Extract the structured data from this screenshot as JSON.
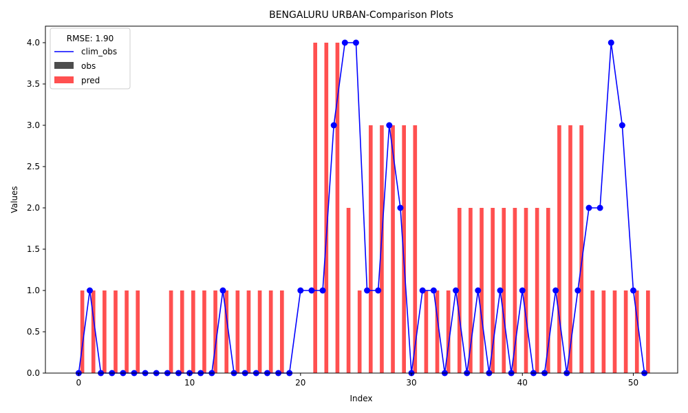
{
  "chart_data": {
    "type": "bar+line",
    "title": "BENGALURU URBAN-Comparison Plots",
    "xlabel": "Index",
    "ylabel": "Values",
    "xlim": [
      -3,
      54
    ],
    "ylim": [
      0,
      4.2
    ],
    "xticks": [
      0,
      10,
      20,
      30,
      40,
      50
    ],
    "yticks": [
      0.0,
      0.5,
      1.0,
      1.5,
      2.0,
      2.5,
      3.0,
      3.5,
      4.0
    ],
    "legend": {
      "title": "RMSE: 1.90",
      "placement": "top-left",
      "entries": [
        {
          "label": "clim_obs",
          "kind": "line",
          "color": "#0000ff"
        },
        {
          "label": "obs",
          "kind": "bar",
          "color": "#4d4d4d"
        },
        {
          "label": "pred",
          "kind": "bar",
          "color": "#ff5050"
        }
      ]
    },
    "x": [
      0,
      1,
      2,
      3,
      4,
      5,
      6,
      7,
      8,
      9,
      10,
      11,
      12,
      13,
      14,
      15,
      16,
      17,
      18,
      19,
      20,
      21,
      22,
      23,
      24,
      25,
      26,
      27,
      28,
      29,
      30,
      31,
      32,
      33,
      34,
      35,
      36,
      37,
      38,
      39,
      40,
      41,
      42,
      43,
      44,
      45,
      46,
      47,
      48,
      49,
      50,
      51
    ],
    "series": [
      {
        "name": "clim_obs",
        "kind": "line",
        "color": "#0000ff",
        "values": [
          0,
          1,
          0,
          0,
          0,
          0,
          0,
          0,
          0,
          0,
          0,
          0,
          0,
          1,
          0,
          0,
          0,
          0,
          0,
          0,
          1,
          1,
          1,
          3,
          4,
          4,
          1,
          1,
          3,
          2,
          0,
          1,
          1,
          0,
          1,
          0,
          1,
          0,
          1,
          0,
          1,
          0,
          0,
          1,
          0,
          1,
          2,
          2,
          4,
          3,
          1,
          0
        ]
      },
      {
        "name": "obs",
        "kind": "bar",
        "color": "#4d4d4d",
        "values": [
          0,
          0,
          0,
          0,
          0,
          0,
          0,
          0,
          0,
          0,
          0,
          0,
          0,
          0,
          0,
          0,
          0,
          0,
          0,
          0,
          0,
          0,
          0,
          0,
          0,
          0,
          0,
          0,
          0,
          0,
          0,
          0,
          0,
          0,
          0,
          0,
          0,
          0,
          0,
          0,
          0,
          0,
          0,
          0,
          0,
          0,
          0,
          0,
          0,
          0,
          0,
          0
        ]
      },
      {
        "name": "pred",
        "kind": "bar",
        "color": "#ff5050",
        "values": [
          1,
          1,
          1,
          1,
          1,
          1,
          0,
          0,
          1,
          1,
          1,
          1,
          1,
          1,
          1,
          1,
          1,
          1,
          1,
          0,
          0,
          4,
          4,
          4,
          2,
          1,
          3,
          3,
          3,
          3,
          3,
          1,
          1,
          1,
          2,
          2,
          2,
          2,
          2,
          2,
          2,
          2,
          2,
          3,
          3,
          3,
          1,
          1,
          1,
          1,
          1,
          1
        ]
      }
    ]
  }
}
